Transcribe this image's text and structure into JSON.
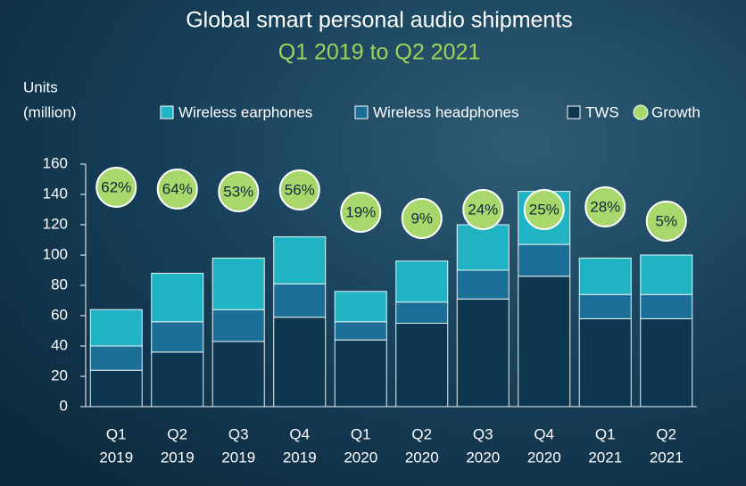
{
  "chart_data": {
    "type": "stacked-bar",
    "title": "Global smart personal audio shipments",
    "subtitle": "Q1 2019 to Q2 2021",
    "ylabel": [
      "Units",
      "(million)"
    ],
    "categories": [
      [
        "Q1",
        "2019"
      ],
      [
        "Q2",
        "2019"
      ],
      [
        "Q3",
        "2019"
      ],
      [
        "Q4",
        "2019"
      ],
      [
        "Q1",
        "2020"
      ],
      [
        "Q2",
        "2020"
      ],
      [
        "Q3",
        "2020"
      ],
      [
        "Q4",
        "2020"
      ],
      [
        "Q1",
        "2021"
      ],
      [
        "Q2",
        "2021"
      ]
    ],
    "series": [
      {
        "name": "TWS",
        "color": "#0d3650",
        "values": [
          24,
          36,
          43,
          59,
          44,
          55,
          71,
          86,
          58,
          58
        ]
      },
      {
        "name": "Wireless headphones",
        "color": "#1b6f97",
        "values": [
          16,
          20,
          21,
          22,
          12,
          14,
          19,
          21,
          16,
          16
        ]
      },
      {
        "name": "Wireless earphones",
        "color": "#20b3c4",
        "values": [
          24,
          32,
          34,
          31,
          20,
          27,
          30,
          35,
          24,
          26
        ]
      }
    ],
    "growth": {
      "name": "Growth",
      "color": "#a8d76c",
      "values": [
        62,
        64,
        53,
        56,
        19,
        9,
        24,
        25,
        28,
        5
      ],
      "value_labels": [
        "62%",
        "64%",
        "53%",
        "56%",
        "19%",
        "9%",
        "24%",
        "25%",
        "28%",
        "5%"
      ]
    },
    "legend_order": [
      2,
      1,
      0
    ],
    "ylim": [
      0,
      160
    ],
    "yticks": [
      0,
      20,
      40,
      60,
      80,
      100,
      120,
      140,
      160
    ]
  }
}
